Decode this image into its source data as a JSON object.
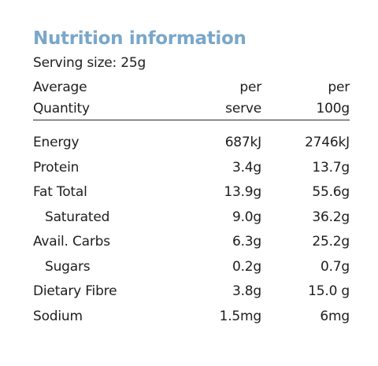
{
  "title": "Nutrition information",
  "serving_size": "Serving size: 25g",
  "colors": {
    "title": "#79a7c9",
    "text": "#1e1e1e",
    "rule": "#2a2a2a"
  },
  "header": {
    "quantity_line1": "Average",
    "quantity_line2": "Quantity",
    "serve_line1": "per",
    "serve_line2": "serve",
    "per100_line1": "per",
    "per100_line2": "100g"
  },
  "rows": [
    {
      "name": "Energy",
      "indent": false,
      "per_serve": "687kJ",
      "per_100g": "2746kJ"
    },
    {
      "name": "Protein",
      "indent": false,
      "per_serve": "3.4g",
      "per_100g": "13.7g"
    },
    {
      "name": "Fat Total",
      "indent": false,
      "per_serve": "13.9g",
      "per_100g": "55.6g"
    },
    {
      "name": "Saturated",
      "indent": true,
      "per_serve": "9.0g",
      "per_100g": "36.2g"
    },
    {
      "name": "Avail. Carbs",
      "indent": false,
      "per_serve": "6.3g",
      "per_100g": "25.2g"
    },
    {
      "name": "Sugars",
      "indent": true,
      "per_serve": "0.2g",
      "per_100g": "0.7g"
    },
    {
      "name": "Dietary Fibre",
      "indent": false,
      "per_serve": "3.8g",
      "per_100g": "15.0 g"
    },
    {
      "name": "Sodium",
      "indent": false,
      "per_serve": "1.5mg",
      "per_100g": "6mg"
    }
  ]
}
